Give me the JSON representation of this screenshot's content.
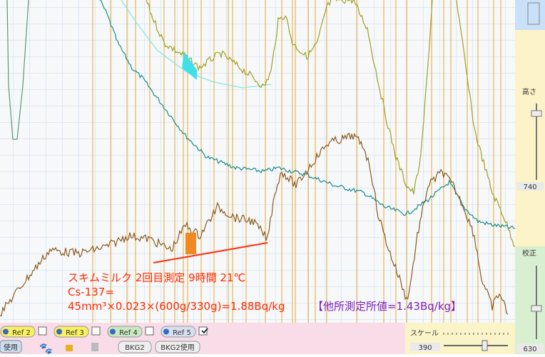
{
  "annotation": {
    "lines": [
      "スキムミルク 2回目測定 9時間 21℃",
      "Cs-137=",
      "45mm³×0.023×(600g/330g)=1.88Bq/kg"
    ],
    "note": "【他所測定所値=1.43Bq/kg】"
  },
  "toolbar": {
    "refs": [
      "Ref 2",
      "Ref 3",
      "Ref 4",
      "Ref 5"
    ],
    "use_button": "使用",
    "bkg_buttons": [
      "BKG2",
      "BKG2使用"
    ],
    "scale_label": "スケール",
    "scale_value": "390"
  },
  "side_panel": {
    "height_label": "高さ",
    "height_value": "740",
    "calib_label": "校正",
    "calib_value": "630"
  }
}
